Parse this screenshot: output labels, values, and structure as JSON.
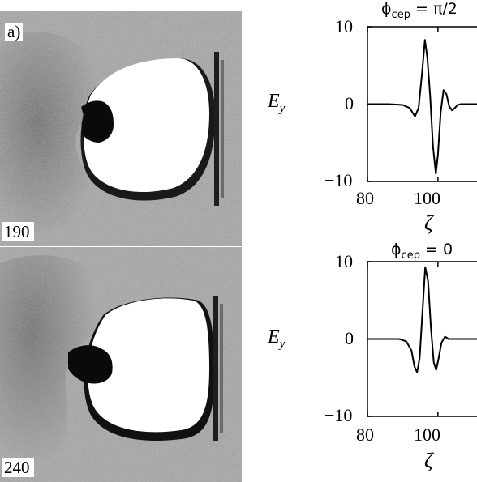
{
  "left_panels": {
    "panel_label": "a)",
    "frames": [
      {
        "time_label": "190"
      },
      {
        "time_label": "240"
      }
    ]
  },
  "right_panels": {
    "ylabel_symbol": "E",
    "ylabel_subscript": "y",
    "xlabel": "ζ",
    "yticks": [
      "10",
      "0",
      "−10"
    ],
    "xticks": [
      "80",
      "100"
    ],
    "plots": [
      {
        "title_symbol": "ϕ",
        "title_subscript": "cep",
        "title_value": "= π/2"
      },
      {
        "title_symbol": "ϕ",
        "title_subscript": "cep",
        "title_value": "= 0"
      }
    ]
  },
  "chart_data": [
    {
      "type": "line",
      "title": "ϕcep = π/2",
      "xlabel": "ζ",
      "ylabel": "Ey",
      "xlim": [
        80,
        112
      ],
      "ylim": [
        -10,
        10
      ],
      "xticks": [
        80,
        100
      ],
      "yticks": [
        -10,
        0,
        10
      ],
      "series": [
        {
          "x": [
            80,
            86,
            90,
            92,
            93.5,
            94.5,
            95.5,
            96.3,
            97,
            97.8,
            98.6,
            99.4,
            100,
            100.8,
            101.6,
            102.4,
            103.2,
            104,
            104.8,
            105.6,
            106.5,
            108,
            110,
            112
          ],
          "y": [
            0,
            0,
            -0.1,
            -0.5,
            -1.6,
            -0.5,
            4,
            8.3,
            6,
            1,
            -5.5,
            -9,
            -6.5,
            -1,
            1.8,
            1.3,
            -0.3,
            -0.8,
            -0.5,
            -0.1,
            0,
            0,
            0,
            0
          ]
        }
      ]
    },
    {
      "type": "line",
      "title": "ϕcep = 0",
      "xlabel": "ζ",
      "ylabel": "Ey",
      "xlim": [
        80,
        112
      ],
      "ylim": [
        -10,
        10
      ],
      "xticks": [
        80,
        100
      ],
      "yticks": [
        -10,
        0,
        10
      ],
      "series": [
        {
          "x": [
            80,
            86,
            89,
            91,
            92.5,
            93.3,
            94.1,
            94.8,
            95.6,
            96.4,
            97.2,
            98,
            98.8,
            99.5,
            100.2,
            101,
            102,
            103,
            104,
            106,
            109,
            112
          ],
          "y": [
            0,
            0,
            0,
            -0.3,
            -1.5,
            -3.5,
            -4.3,
            -2.5,
            3.5,
            9.3,
            7.5,
            1.5,
            -3,
            -4,
            -2.5,
            -0.5,
            0.3,
            0,
            0,
            0,
            0,
            0
          ]
        }
      ]
    }
  ]
}
